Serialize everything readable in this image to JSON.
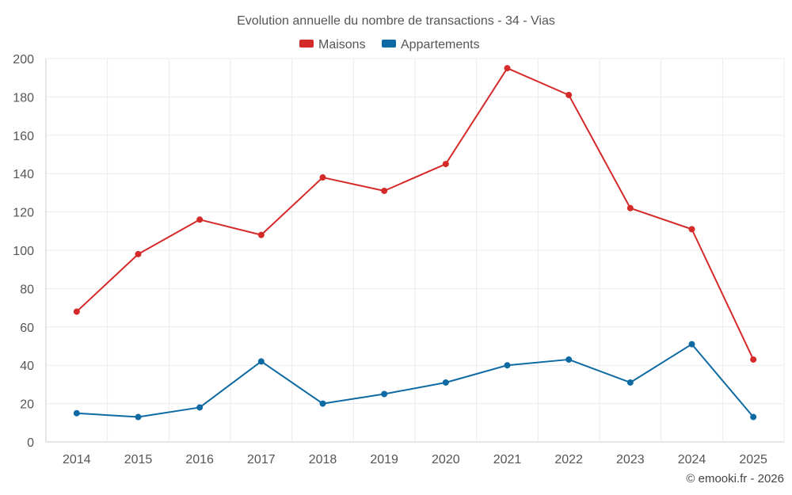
{
  "chart_data": {
    "type": "line",
    "title": "Evolution annuelle du nombre de transactions - 34 - Vias",
    "categories": [
      "2014",
      "2015",
      "2016",
      "2017",
      "2018",
      "2019",
      "2020",
      "2021",
      "2022",
      "2023",
      "2024",
      "2025"
    ],
    "series": [
      {
        "name": "Maisons",
        "color": "#d42a2a",
        "values": [
          68,
          98,
          116,
          108,
          138,
          131,
          145,
          195,
          181,
          122,
          111,
          43
        ]
      },
      {
        "name": "Appartements",
        "color": "#0e6aa2",
        "values": [
          15,
          13,
          18,
          42,
          20,
          25,
          31,
          40,
          43,
          31,
          51,
          13
        ]
      }
    ],
    "ylim": [
      0,
      200
    ],
    "yticks": [
      0,
      20,
      40,
      60,
      80,
      100,
      120,
      140,
      160,
      180,
      200
    ],
    "xlabel": "",
    "ylabel": "",
    "grid": true,
    "legend_position": "top-center"
  },
  "credit": "© emooki.fr - 2026"
}
